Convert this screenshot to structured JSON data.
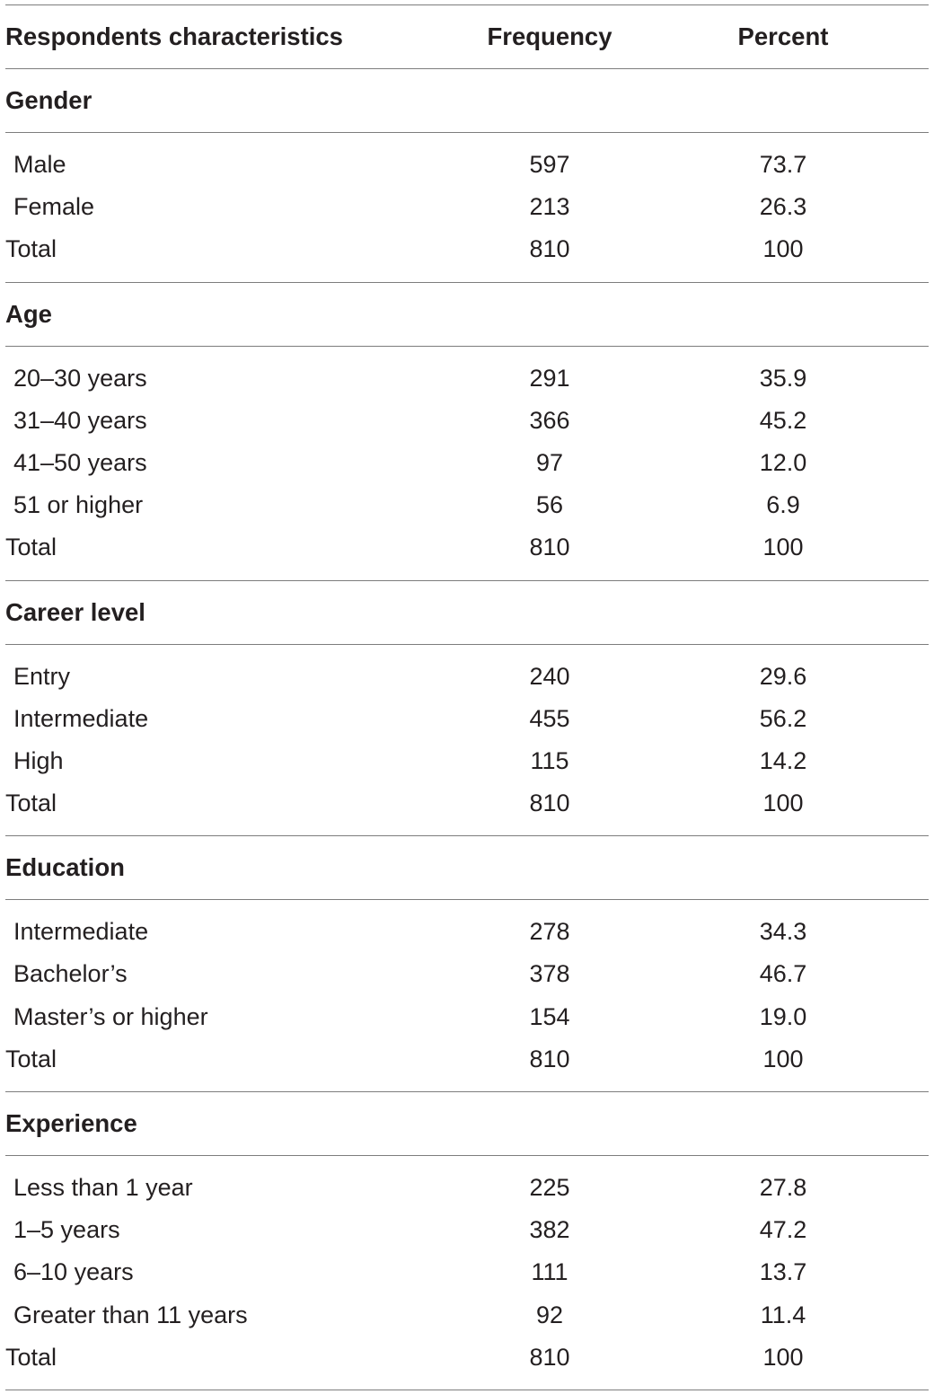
{
  "headers": [
    "Respondents characteristics",
    "Frequency",
    "Percent"
  ],
  "sections": [
    {
      "title": "Gender",
      "rows": [
        {
          "label": "Male",
          "frequency": "597",
          "percent": "73.7"
        },
        {
          "label": "Female",
          "frequency": "213",
          "percent": "26.3"
        }
      ],
      "total": {
        "label": "Total",
        "frequency": "810",
        "percent": "100"
      }
    },
    {
      "title": "Age",
      "rows": [
        {
          "label": "20–30 years",
          "frequency": "291",
          "percent": "35.9"
        },
        {
          "label": "31–40 years",
          "frequency": "366",
          "percent": "45.2"
        },
        {
          "label": "41–50 years",
          "frequency": "97",
          "percent": "12.0"
        },
        {
          "label": "51 or higher",
          "frequency": "56",
          "percent": "6.9"
        }
      ],
      "total": {
        "label": "Total",
        "frequency": "810",
        "percent": "100"
      }
    },
    {
      "title": "Career level",
      "rows": [
        {
          "label": "Entry",
          "frequency": "240",
          "percent": "29.6"
        },
        {
          "label": "Intermediate",
          "frequency": "455",
          "percent": "56.2"
        },
        {
          "label": "High",
          "frequency": "115",
          "percent": "14.2"
        }
      ],
      "total": {
        "label": "Total",
        "frequency": "810",
        "percent": "100"
      }
    },
    {
      "title": "Education",
      "rows": [
        {
          "label": "Intermediate",
          "frequency": "278",
          "percent": "34.3"
        },
        {
          "label": "Bachelor’s",
          "frequency": "378",
          "percent": "46.7"
        },
        {
          "label": "Master’s or higher",
          "frequency": "154",
          "percent": "19.0"
        }
      ],
      "total": {
        "label": "Total",
        "frequency": "810",
        "percent": "100"
      }
    },
    {
      "title": "Experience",
      "rows": [
        {
          "label": "Less than 1 year",
          "frequency": "225",
          "percent": "27.8"
        },
        {
          "label": "1–5 years",
          "frequency": "382",
          "percent": "47.2"
        },
        {
          "label": "6–10 years",
          "frequency": "111",
          "percent": "13.7"
        },
        {
          "label": "Greater than 11 years",
          "frequency": "92",
          "percent": "11.4"
        }
      ],
      "total": {
        "label": "Total",
        "frequency": "810",
        "percent": "100"
      }
    }
  ]
}
